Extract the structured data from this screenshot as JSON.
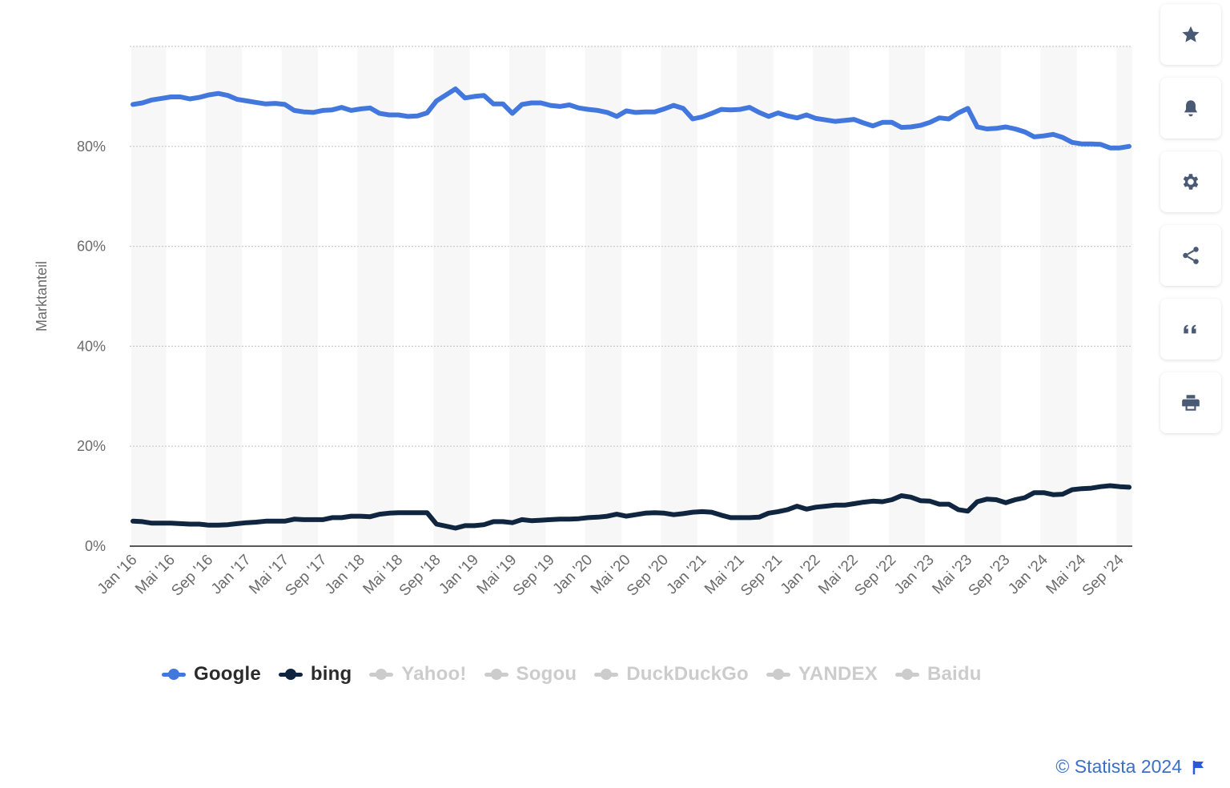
{
  "chart_data": {
    "type": "line",
    "ylabel": "Marktanteil",
    "ylim": [
      0,
      100
    ],
    "yticks": [
      "0%",
      "20%",
      "40%",
      "60%",
      "80%"
    ],
    "xticks": [
      "Jan '16",
      "Mai '16",
      "Sep '16",
      "Jan '17",
      "Mai '17",
      "Sep '17",
      "Jan '18",
      "Mai '18",
      "Sep '18",
      "Jan '19",
      "Mai '19",
      "Sep '19",
      "Jan '20",
      "Mai '20",
      "Sep '20",
      "Jan '21",
      "Mai '21",
      "Sep '21",
      "Jan '22",
      "Mai '22",
      "Sep '22",
      "Jan '23",
      "Mai '23",
      "Sep '23",
      "Jan '24",
      "Mai '24",
      "Sep '24"
    ],
    "x_start": "2016-01",
    "x_end": "2024-10",
    "series": [
      {
        "name": "Google",
        "color": "#4277dd",
        "values": [
          88.4,
          88.7,
          89.3,
          89.6,
          89.9,
          89.9,
          89.5,
          89.8,
          90.3,
          90.6,
          90.2,
          89.4,
          89.1,
          88.8,
          88.5,
          88.6,
          88.4,
          87.2,
          86.9,
          86.8,
          87.2,
          87.3,
          87.8,
          87.2,
          87.5,
          87.7,
          86.6,
          86.3,
          86.3,
          86.0,
          86.1,
          86.7,
          89.1,
          90.3,
          91.5,
          89.7,
          90.0,
          90.2,
          88.5,
          88.5,
          86.6,
          88.4,
          88.7,
          88.7,
          88.2,
          88.0,
          88.3,
          87.7,
          87.4,
          87.2,
          86.8,
          86.0,
          87.1,
          86.8,
          86.9,
          86.9,
          87.5,
          88.2,
          87.6,
          85.5,
          85.9,
          86.6,
          87.4,
          87.3,
          87.4,
          87.8,
          86.8,
          86.0,
          86.7,
          86.1,
          85.7,
          86.3,
          85.6,
          85.3,
          85.0,
          85.2,
          85.4,
          84.7,
          84.1,
          84.8,
          84.8,
          83.8,
          83.9,
          84.2,
          84.8,
          85.7,
          85.5,
          86.7,
          87.6,
          83.9,
          83.5,
          83.6,
          83.9,
          83.5,
          82.9,
          81.9,
          82.1,
          82.4,
          81.8,
          80.8,
          80.5,
          80.5,
          80.4,
          79.7,
          79.7,
          80.0
        ]
      },
      {
        "name": "bing",
        "color": "#0f2540",
        "values": [
          5.0,
          4.9,
          4.6,
          4.6,
          4.6,
          4.5,
          4.4,
          4.4,
          4.2,
          4.2,
          4.3,
          4.5,
          4.7,
          4.8,
          5.0,
          5.0,
          5.0,
          5.4,
          5.3,
          5.3,
          5.3,
          5.7,
          5.7,
          6.0,
          6.0,
          5.9,
          6.4,
          6.6,
          6.7,
          6.7,
          6.7,
          6.7,
          4.4,
          4.0,
          3.6,
          4.1,
          4.1,
          4.3,
          4.9,
          4.9,
          4.7,
          5.3,
          5.1,
          5.2,
          5.3,
          5.4,
          5.4,
          5.5,
          5.7,
          5.8,
          6.0,
          6.4,
          6.0,
          6.3,
          6.6,
          6.7,
          6.6,
          6.3,
          6.5,
          6.8,
          6.9,
          6.8,
          6.2,
          5.7,
          5.7,
          5.7,
          5.8,
          6.6,
          6.9,
          7.3,
          8.0,
          7.4,
          7.8,
          8.0,
          8.2,
          8.2,
          8.5,
          8.8,
          9.0,
          8.9,
          9.3,
          10.1,
          9.8,
          9.1,
          9.0,
          8.4,
          8.4,
          7.3,
          7.0,
          8.9,
          9.4,
          9.3,
          8.7,
          9.3,
          9.7,
          10.7,
          10.7,
          10.3,
          10.4,
          11.3,
          11.5,
          11.6,
          11.9,
          12.1,
          11.9,
          11.8
        ]
      },
      {
        "name": "Yahoo!",
        "color": "#cccccc",
        "hidden": true
      },
      {
        "name": "Sogou",
        "color": "#cccccc",
        "hidden": true
      },
      {
        "name": "DuckDuckGo",
        "color": "#cccccc",
        "hidden": true
      },
      {
        "name": "YANDEX",
        "color": "#cccccc",
        "hidden": true
      },
      {
        "name": "Baidu",
        "color": "#cccccc",
        "hidden": true
      }
    ],
    "grid": true,
    "legend_position": "bottom-left"
  },
  "toolbar": {
    "buttons": [
      {
        "icon": "star-icon"
      },
      {
        "icon": "bell-icon"
      },
      {
        "icon": "gear-icon"
      },
      {
        "icon": "share-icon"
      },
      {
        "icon": "quote-icon"
      },
      {
        "icon": "print-icon"
      }
    ],
    "icon_color": "#4a5a75"
  },
  "credit": {
    "text": "© Statista 2024",
    "color": "#3d6ec8"
  }
}
